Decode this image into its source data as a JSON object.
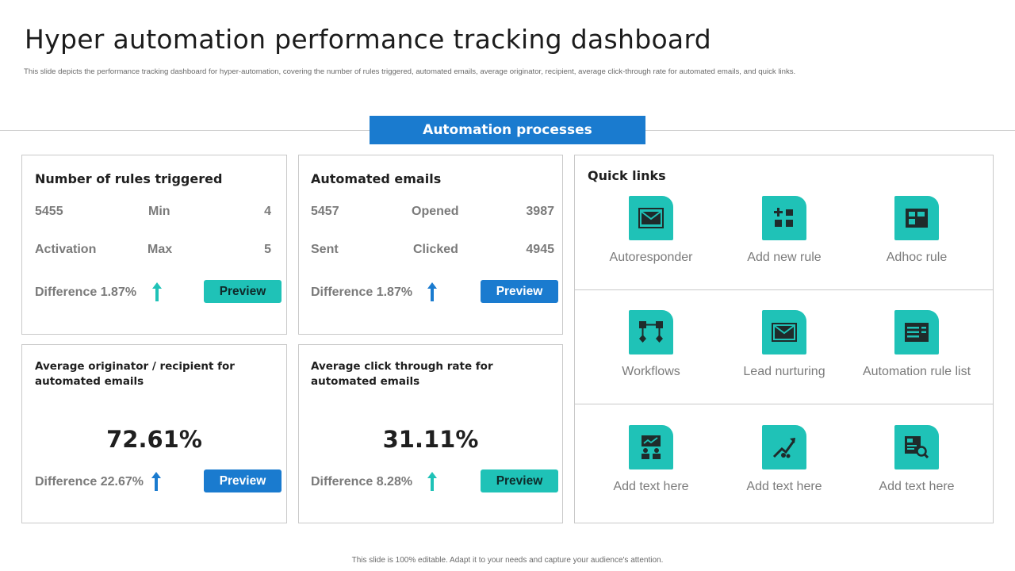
{
  "page": {
    "title": "Hyper automation performance tracking dashboard",
    "subtitle": "This slide depicts the performance tracking dashboard for hyper-automation, covering the number of rules triggered, automated emails,  average originator, recipient, average click-through rate for automated emails,  and quick links.",
    "banner": "Automation processes",
    "footer": "This slide is 100% editable. Adapt it to your needs and capture your audience's attention."
  },
  "rules_card": {
    "title": "Number of rules triggered",
    "r1c1": "5455",
    "r1c2": "Min",
    "r1c3": "4",
    "r2c1": "Activation",
    "r2c2": "Max",
    "r2c3": "5",
    "difference": "Difference 1.87%",
    "button": "Preview"
  },
  "emails_card": {
    "title": "Automated emails",
    "r1c1": "5457",
    "r1c2": "Opened",
    "r1c3": "3987",
    "r2c1": "Sent",
    "r2c2": "Clicked",
    "r2c3": "4945",
    "difference": "Difference 1.87%",
    "button": "Preview"
  },
  "originator_card": {
    "title": "Average originator / recipient for automated emails",
    "value": "72.61%",
    "difference": "Difference 22.67%",
    "button": "Preview"
  },
  "ctr_card": {
    "title": "Average click through rate for automated emails",
    "value": "31.11%",
    "difference": "Difference 8.28%",
    "button": "Preview"
  },
  "quick_links": {
    "title": "Quick links",
    "items": [
      {
        "label": "Autoresponder",
        "icon": "autoresponder-icon"
      },
      {
        "label": "Add new rule",
        "icon": "add-rule-icon"
      },
      {
        "label": "Adhoc rule",
        "icon": "adhoc-rule-icon"
      },
      {
        "label": "Workflows",
        "icon": "workflow-icon"
      },
      {
        "label": "Lead nurturing",
        "icon": "mail-icon"
      },
      {
        "label": "Automation rule list",
        "icon": "rule-list-icon"
      },
      {
        "label": "Add text here",
        "icon": "analytics-icon"
      },
      {
        "label": "Add text here",
        "icon": "growth-icon"
      },
      {
        "label": "Add text here",
        "icon": "report-search-icon"
      }
    ]
  },
  "colors": {
    "teal": "#1fc2b7",
    "blue": "#1a7bcf",
    "dark_icon": "#1f2b2b"
  }
}
